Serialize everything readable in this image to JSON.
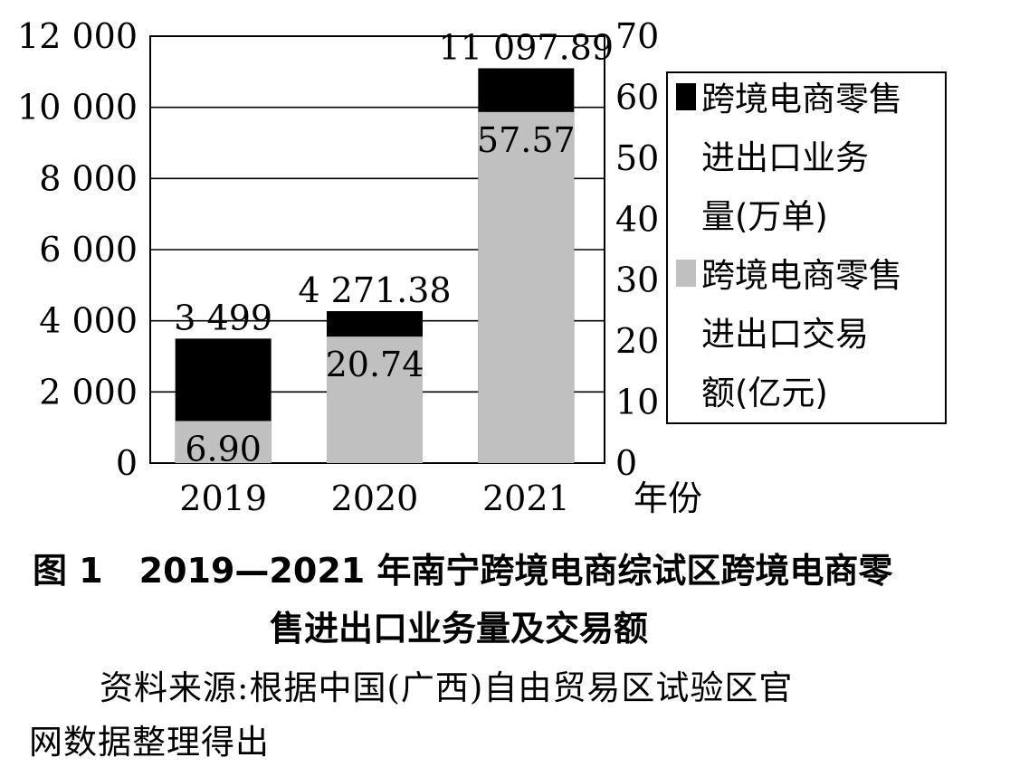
{
  "chart_data": {
    "type": "bar",
    "categories": [
      "2019",
      "2020",
      "2021"
    ],
    "series": [
      {
        "name": "跨境电商零售进出口交易额(亿元)",
        "axis": "right",
        "values": [
          6.9,
          20.74,
          57.57
        ],
        "labels": [
          "6.90",
          "20.74",
          "57.57"
        ],
        "color": "#c0c0c0"
      },
      {
        "name": "跨境电商零售进出口业务量(万单)",
        "axis": "left",
        "values": [
          3499,
          4271.38,
          11097.89
        ],
        "labels": [
          "3 499",
          "4 271.38",
          "11 097.89"
        ],
        "color": "#000000"
      }
    ],
    "left_axis": {
      "ylim": [
        0,
        12000
      ],
      "ticks": [
        0,
        2000,
        4000,
        6000,
        8000,
        10000,
        12000
      ],
      "tick_labels": [
        "0",
        "2 000",
        "4 000",
        "6 000",
        "8 000",
        "10 000",
        "12 000"
      ]
    },
    "right_axis": {
      "ylim": [
        0,
        70
      ],
      "ticks": [
        0,
        10,
        20,
        30,
        40,
        50,
        60,
        70
      ],
      "tick_labels": [
        "0",
        "10",
        "20",
        "30",
        "40",
        "50",
        "60",
        "70"
      ]
    },
    "xlabel": "年份",
    "grid": true,
    "legend": {
      "placement": "right",
      "entries": [
        {
          "lines": [
            "跨境电商零售",
            "进出口业务",
            "量(万单)"
          ],
          "color": "#000000"
        },
        {
          "lines": [
            "跨境电商零售",
            "进出口交易",
            "额(亿元)"
          ],
          "color": "#c0c0c0"
        }
      ]
    }
  },
  "caption": {
    "figure_no": "图 1",
    "line1": "2019—2021 年南宁跨境电商综试区跨境电商零",
    "line2": "售进出口业务量及交易额"
  },
  "source": {
    "line1": "资料来源:根据中国(广西)自由贸易区试验区官",
    "line2": "网数据整理得出"
  }
}
